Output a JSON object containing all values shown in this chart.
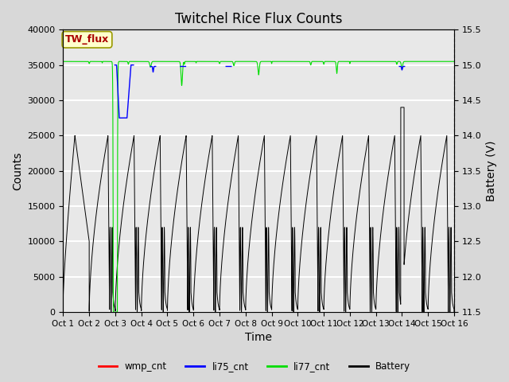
{
  "title": "Twitchel Rice Flux Counts",
  "xlabel": "Time",
  "ylabel_left": "Counts",
  "ylabel_right": "Battery (V)",
  "ylim_left": [
    0,
    40000
  ],
  "ylim_right": [
    11.5,
    15.5
  ],
  "yticks_left": [
    0,
    5000,
    10000,
    15000,
    20000,
    25000,
    30000,
    35000,
    40000
  ],
  "yticks_right": [
    11.5,
    12.0,
    12.5,
    13.0,
    13.5,
    14.0,
    14.5,
    15.0,
    15.5
  ],
  "xtick_labels": [
    "Oct 1",
    "Oct 2",
    "Oct 3",
    "Oct 4",
    "Oct 5",
    "Oct 6",
    "Oct 7",
    "Oct 8",
    "Oct 9",
    "Oct 10",
    "Oct 11",
    "Oct 12",
    "Oct 13",
    "Oct 14",
    "Oct 15",
    "Oct 16"
  ],
  "fig_bg_color": "#d8d8d8",
  "plot_bg_color": "#e8e8e8",
  "grid_color": "#c8c8c8",
  "annotation_text": "TW_flux",
  "annotation_box_color": "#ffffcc",
  "annotation_text_color": "#aa0000",
  "li77_color": "#00dd00",
  "li75_color": "#0000ff",
  "wmp_color": "#ff0000",
  "battery_color": "#000000",
  "legend_labels": [
    "wmp_cnt",
    "li75_cnt",
    "li77_cnt",
    "Battery"
  ],
  "n_days": 15,
  "li77_base": 35500,
  "battery_peak_counts": 27000,
  "battery_min_counts": 1200
}
